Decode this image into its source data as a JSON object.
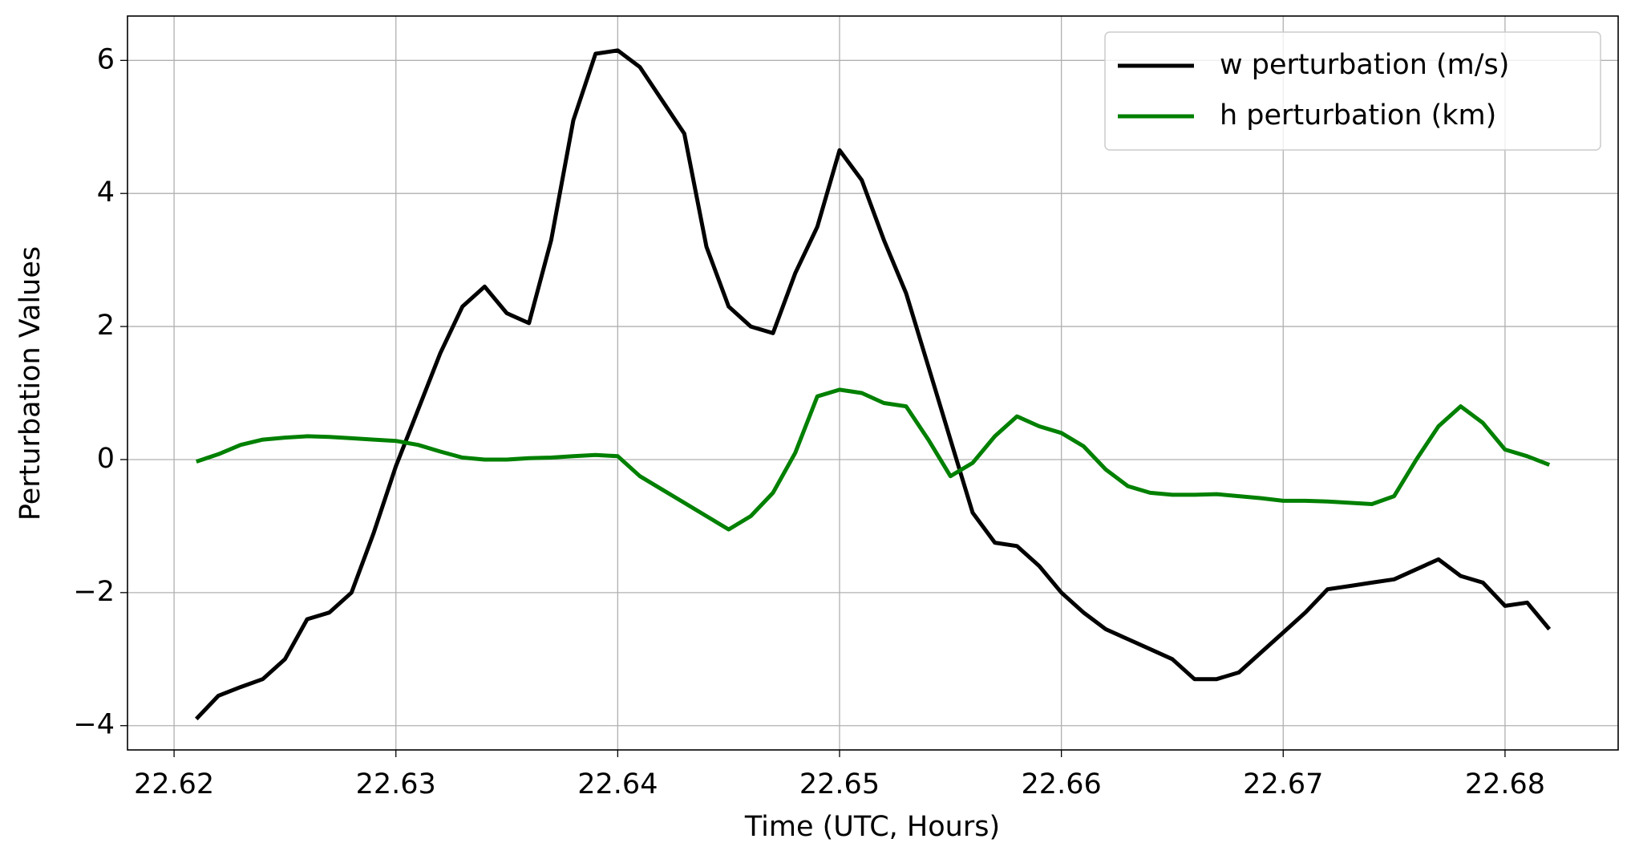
{
  "chart_data": {
    "type": "line",
    "xlabel": "Time (UTC, Hours)",
    "ylabel": "Perturbation Values",
    "x": [
      22.621,
      22.622,
      22.623,
      22.624,
      22.625,
      22.626,
      22.627,
      22.628,
      22.629,
      22.63,
      22.631,
      22.632,
      22.633,
      22.634,
      22.635,
      22.636,
      22.637,
      22.638,
      22.639,
      22.64,
      22.641,
      22.642,
      22.643,
      22.644,
      22.645,
      22.646,
      22.647,
      22.648,
      22.649,
      22.65,
      22.651,
      22.652,
      22.653,
      22.654,
      22.655,
      22.656,
      22.657,
      22.658,
      22.659,
      22.66,
      22.661,
      22.662,
      22.663,
      22.664,
      22.665,
      22.666,
      22.667,
      22.668,
      22.669,
      22.67,
      22.671,
      22.672,
      22.673,
      22.674,
      22.675,
      22.676,
      22.677,
      22.678,
      22.679,
      22.68,
      22.681,
      22.682
    ],
    "series": [
      {
        "name": "w perturbation (m/s)",
        "color": "#000000",
        "values": [
          -3.9,
          -3.55,
          -3.42,
          -3.3,
          -3.0,
          -2.4,
          -2.3,
          -2.0,
          -1.1,
          -0.1,
          0.75,
          1.6,
          2.3,
          2.6,
          2.2,
          2.05,
          3.3,
          5.1,
          6.1,
          6.15,
          5.9,
          5.4,
          4.9,
          3.2,
          2.3,
          2.0,
          1.9,
          2.8,
          3.5,
          4.65,
          4.2,
          3.3,
          2.5,
          1.4,
          0.3,
          -0.8,
          -1.25,
          -1.3,
          -1.6,
          -2.0,
          -2.3,
          -2.55,
          -2.7,
          -2.85,
          -3.0,
          -3.3,
          -3.3,
          -3.2,
          -2.9,
          -2.6,
          -2.3,
          -1.95,
          -1.9,
          -1.85,
          -1.8,
          -1.65,
          -1.5,
          -1.75,
          -1.85,
          -2.2,
          -2.15,
          -2.55
        ]
      },
      {
        "name": "h perturbation (km)",
        "color": "#008000",
        "values": [
          -0.03,
          0.08,
          0.22,
          0.3,
          0.33,
          0.35,
          0.34,
          0.32,
          0.3,
          0.28,
          0.22,
          0.12,
          0.03,
          0.0,
          0.0,
          0.02,
          0.03,
          0.05,
          0.07,
          0.05,
          -0.25,
          -0.45,
          -0.65,
          -0.85,
          -1.05,
          -0.85,
          -0.5,
          0.1,
          0.95,
          1.05,
          1.0,
          0.85,
          0.8,
          0.3,
          -0.25,
          -0.05,
          0.35,
          0.65,
          0.5,
          0.4,
          0.2,
          -0.15,
          -0.4,
          -0.5,
          -0.53,
          -0.53,
          -0.52,
          -0.55,
          -0.58,
          -0.62,
          -0.62,
          -0.63,
          -0.65,
          -0.67,
          -0.55,
          0.0,
          0.5,
          0.8,
          0.55,
          0.15,
          0.05,
          -0.08
        ]
      }
    ],
    "xlim": [
      22.6179,
      22.6851
    ],
    "ylim": [
      -4.365,
      6.667
    ],
    "xticks": [
      22.62,
      22.63,
      22.64,
      22.65,
      22.66,
      22.67,
      22.68
    ],
    "yticks": [
      {
        "value": -4,
        "label": "−4"
      },
      {
        "value": -2,
        "label": "−2"
      },
      0,
      2,
      4,
      6
    ],
    "grid": true,
    "legend": "upper right"
  }
}
